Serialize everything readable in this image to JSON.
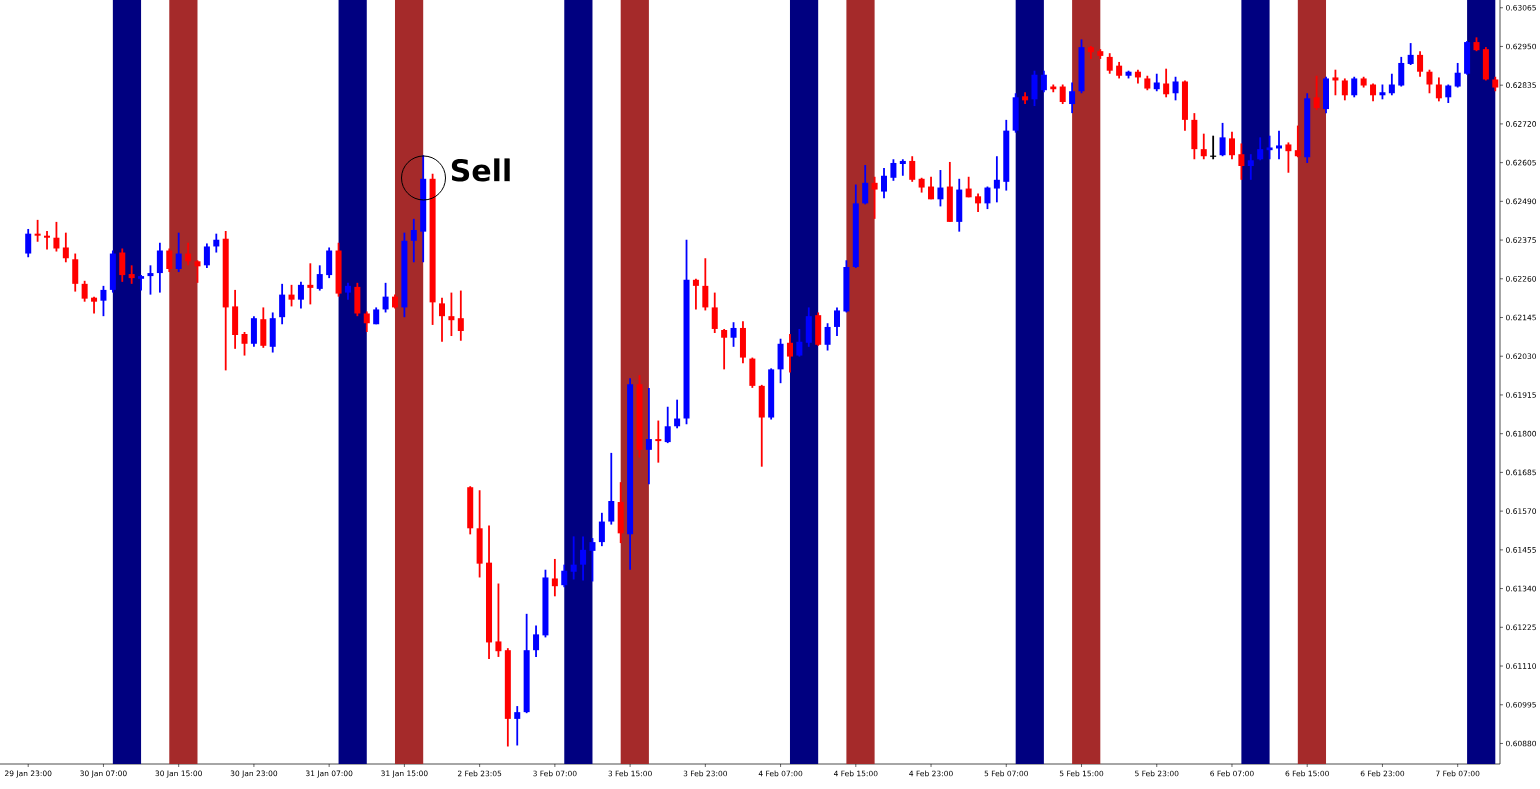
{
  "chart_data": {
    "type": "candlestick",
    "categories": [
      "29 Jan 23:00",
      null,
      null,
      null,
      null,
      null,
      null,
      null,
      "30 Jan 07:00",
      null,
      null,
      null,
      null,
      null,
      null,
      null,
      "30 Jan 15:00",
      null,
      null,
      null,
      null,
      null,
      null,
      null,
      "30 Jan 23:00",
      null,
      null,
      null,
      null,
      null,
      null,
      null,
      "31 Jan 07:00",
      null,
      null,
      null,
      null,
      null,
      null,
      null,
      "31 Jan 15:00",
      null,
      null,
      null,
      null,
      null,
      null,
      null,
      "2 Feb 23:05",
      null,
      null,
      null,
      null,
      null,
      null,
      null,
      "3 Feb 07:00",
      null,
      null,
      null,
      null,
      null,
      null,
      null,
      "3 Feb 15:00",
      null,
      null,
      null,
      null,
      null,
      null,
      null,
      "3 Feb 23:00",
      null,
      null,
      null,
      null,
      null,
      null,
      null,
      "4 Feb 07:00",
      null,
      null,
      null,
      null,
      null,
      null,
      null,
      "4 Feb 15:00",
      null,
      null,
      null,
      null,
      null,
      null,
      null,
      "4 Feb 23:00",
      null,
      null,
      null,
      null,
      null,
      null,
      null,
      "5 Feb 07:00",
      null,
      null,
      null,
      null,
      null,
      null,
      null,
      "5 Feb 15:00",
      null,
      null,
      null,
      null,
      null,
      null,
      null,
      "5 Feb 23:00",
      null,
      null,
      null,
      null,
      null,
      null,
      null,
      "6 Feb 07:00",
      null,
      null,
      null,
      null,
      null,
      null,
      null,
      "6 Feb 15:00",
      null,
      null,
      null,
      null,
      null,
      null,
      null,
      "6 Feb 23:00",
      null,
      null,
      null,
      null,
      null,
      null,
      null,
      "7 Feb 07:00",
      null,
      null,
      null,
      null
    ],
    "ohlc": [
      [
        0.62335,
        0.62408,
        0.62324,
        0.62394
      ],
      [
        0.62394,
        0.62435,
        0.6237,
        0.62388
      ],
      [
        0.62388,
        0.62402,
        0.62347,
        0.62382
      ],
      [
        0.62382,
        0.62429,
        0.62341,
        0.6235
      ],
      [
        0.62353,
        0.62397,
        0.62309,
        0.62321
      ],
      [
        0.62318,
        0.62335,
        0.62222,
        0.62245
      ],
      [
        0.62245,
        0.62254,
        0.62192,
        0.62201
      ],
      [
        0.62204,
        0.62207,
        0.62157,
        0.62192
      ],
      [
        0.62195,
        0.62239,
        0.62149,
        0.62227
      ],
      [
        0.62227,
        0.62344,
        0.62219,
        0.62335
      ],
      [
        0.62338,
        0.6235,
        0.62251,
        0.62271
      ],
      [
        0.62274,
        0.623,
        0.62245,
        0.62262
      ],
      [
        0.6226,
        0.62271,
        0.62225,
        0.62268
      ],
      [
        0.62268,
        0.623,
        0.62213,
        0.62277
      ],
      [
        0.62277,
        0.62367,
        0.62219,
        0.62344
      ],
      [
        0.62344,
        0.6235,
        0.6228,
        0.62289
      ],
      [
        0.62289,
        0.62397,
        0.6228,
        0.62335
      ],
      [
        0.62335,
        0.62367,
        0.623,
        0.62312
      ],
      [
        0.62312,
        0.62315,
        0.62248,
        0.62297
      ],
      [
        0.623,
        0.62365,
        0.62292,
        0.62356
      ],
      [
        0.62356,
        0.62394,
        0.62338,
        0.62376
      ],
      [
        0.62379,
        0.62402,
        0.61988,
        0.62175
      ],
      [
        0.62178,
        0.62227,
        0.62052,
        0.62093
      ],
      [
        0.62096,
        0.62102,
        0.62032,
        0.62067
      ],
      [
        0.62067,
        0.62149,
        0.62058,
        0.62143
      ],
      [
        0.6214,
        0.62175,
        0.62055,
        0.62061
      ],
      [
        0.62058,
        0.6216,
        0.62041,
        0.62143
      ],
      [
        0.62146,
        0.62245,
        0.62125,
        0.62213
      ],
      [
        0.62213,
        0.62242,
        0.62178,
        0.62198
      ],
      [
        0.62198,
        0.62251,
        0.62172,
        0.62242
      ],
      [
        0.62242,
        0.62306,
        0.62184,
        0.62233
      ],
      [
        0.6223,
        0.623,
        0.62225,
        0.62274
      ],
      [
        0.62271,
        0.62353,
        0.62262,
        0.62344
      ],
      [
        0.62344,
        0.62367,
        0.62207,
        0.62216
      ],
      [
        0.62219,
        0.62248,
        0.62198,
        0.62239
      ],
      [
        0.62236,
        0.62248,
        0.62149,
        0.62157
      ],
      [
        0.62157,
        0.62163,
        0.62102,
        0.62128
      ],
      [
        0.62125,
        0.62175,
        0.62125,
        0.62169
      ],
      [
        0.62169,
        0.62248,
        0.6216,
        0.62207
      ],
      [
        0.62207,
        0.62213,
        0.62172,
        0.62175
      ],
      [
        0.62175,
        0.62397,
        0.62146,
        0.62373
      ],
      [
        0.62373,
        0.62438,
        0.62309,
        0.62405
      ],
      [
        0.624,
        0.62627,
        0.62309,
        0.62557
      ],
      [
        0.62557,
        0.62572,
        0.62123,
        0.6219
      ],
      [
        0.62187,
        0.62204,
        0.62073,
        0.62149
      ],
      [
        0.62149,
        0.62219,
        0.6209,
        0.62137
      ],
      [
        0.62143,
        0.62225,
        0.62076,
        0.62105
      ],
      [
        0.61641,
        0.61644,
        0.61501,
        0.61519
      ],
      [
        0.61519,
        0.61632,
        0.61373,
        0.61414
      ],
      [
        0.61417,
        0.61527,
        0.61131,
        0.6118
      ],
      [
        0.61183,
        0.61355,
        0.61137,
        0.61154
      ],
      [
        0.61157,
        0.61163,
        0.60871,
        0.60953
      ],
      [
        0.60953,
        0.60991,
        0.60874,
        0.60973
      ],
      [
        0.60973,
        0.61265,
        0.6097,
        0.61157
      ],
      [
        0.61157,
        0.6123,
        0.61137,
        0.61204
      ],
      [
        0.61201,
        0.61396,
        0.61195,
        0.61373
      ],
      [
        0.6137,
        0.61428,
        0.61317,
        0.61347
      ],
      [
        0.6135,
        0.61411,
        0.61344,
        0.61393
      ],
      [
        0.6139,
        0.61495,
        0.61367,
        0.61411
      ],
      [
        0.61411,
        0.61495,
        0.61364,
        0.61455
      ],
      [
        0.61452,
        0.6149,
        0.61361,
        0.61478
      ],
      [
        0.61478,
        0.61565,
        0.61466,
        0.61539
      ],
      [
        0.61539,
        0.61743,
        0.6153,
        0.616
      ],
      [
        0.61597,
        0.61656,
        0.61475,
        0.61504
      ],
      [
        0.61501,
        0.61965,
        0.61396,
        0.61947
      ],
      [
        0.61947,
        0.61974,
        0.61729,
        0.61752
      ],
      [
        0.61752,
        0.61936,
        0.6165,
        0.61784
      ],
      [
        0.61784,
        0.61839,
        0.61714,
        0.61778
      ],
      [
        0.61775,
        0.6188,
        0.61772,
        0.61822
      ],
      [
        0.61822,
        0.61901,
        0.61816,
        0.61845
      ],
      [
        0.61845,
        0.62376,
        0.61828,
        0.62257
      ],
      [
        0.62257,
        0.6226,
        0.62169,
        0.62239
      ],
      [
        0.62239,
        0.62321,
        0.62166,
        0.62175
      ],
      [
        0.62175,
        0.62219,
        0.62099,
        0.62111
      ],
      [
        0.62108,
        0.62111,
        0.61991,
        0.62085
      ],
      [
        0.62085,
        0.62131,
        0.62058,
        0.62114
      ],
      [
        0.62114,
        0.62134,
        0.62009,
        0.62026
      ],
      [
        0.62023,
        0.62026,
        0.61936,
        0.61942
      ],
      [
        0.61942,
        0.61945,
        0.61702,
        0.61848
      ],
      [
        0.61848,
        0.61994,
        0.61842,
        0.61991
      ],
      [
        0.61991,
        0.62082,
        0.6195,
        0.62067
      ],
      [
        0.6207,
        0.62096,
        0.61982,
        0.62029
      ],
      [
        0.62032,
        0.62111,
        0.62029,
        0.62073
      ],
      [
        0.6207,
        0.62175,
        0.62058,
        0.62149
      ],
      [
        0.62152,
        0.6216,
        0.62061,
        0.62064
      ],
      [
        0.62064,
        0.62128,
        0.62047,
        0.62117
      ],
      [
        0.62117,
        0.62175,
        0.6209,
        0.62166
      ],
      [
        0.62163,
        0.62315,
        0.6216,
        0.62295
      ],
      [
        0.62295,
        0.6254,
        0.62292,
        0.62484
      ],
      [
        0.62484,
        0.62598,
        0.62481,
        0.62545
      ],
      [
        0.62545,
        0.62563,
        0.62438,
        0.62525
      ],
      [
        0.62519,
        0.62589,
        0.62499,
        0.62566
      ],
      [
        0.6256,
        0.62615,
        0.62551,
        0.62604
      ],
      [
        0.62601,
        0.62615,
        0.62566,
        0.6261
      ],
      [
        0.6261,
        0.62624,
        0.62548,
        0.62554
      ],
      [
        0.62557,
        0.6256,
        0.62516,
        0.62531
      ],
      [
        0.62534,
        0.62563,
        0.62496,
        0.62496
      ],
      [
        0.62496,
        0.62583,
        0.62475,
        0.62531
      ],
      [
        0.62534,
        0.62607,
        0.62429,
        0.62429
      ],
      [
        0.62429,
        0.62557,
        0.624,
        0.62525
      ],
      [
        0.62528,
        0.62563,
        0.62502,
        0.62502
      ],
      [
        0.62505,
        0.62513,
        0.62458,
        0.62484
      ],
      [
        0.62484,
        0.62534,
        0.62467,
        0.62531
      ],
      [
        0.62528,
        0.62624,
        0.62487,
        0.62554
      ],
      [
        0.62548,
        0.62732,
        0.62522,
        0.627
      ],
      [
        0.627,
        0.62811,
        0.62694,
        0.62799
      ],
      [
        0.62802,
        0.62814,
        0.62779,
        0.6279
      ],
      [
        0.62793,
        0.62878,
        0.62773,
        0.62866
      ],
      [
        0.6282,
        0.62878,
        0.62814,
        0.62866
      ],
      [
        0.62831,
        0.62837,
        0.62814,
        0.62823
      ],
      [
        0.62831,
        0.62837,
        0.62779,
        0.62785
      ],
      [
        0.62779,
        0.62843,
        0.62752,
        0.62817
      ],
      [
        0.62817,
        0.62971,
        0.62811,
        0.62948
      ],
      [
        0.62948,
        0.62951,
        0.62913,
        0.62933
      ],
      [
        0.62936,
        0.62942,
        0.62913,
        0.62922
      ],
      [
        0.62919,
        0.6293,
        0.62869,
        0.62878
      ],
      [
        0.62893,
        0.62904,
        0.62855,
        0.62863
      ],
      [
        0.62863,
        0.62878,
        0.62855,
        0.62875
      ],
      [
        0.62875,
        0.62881,
        0.6284,
        0.62858
      ],
      [
        0.62855,
        0.62863,
        0.6282,
        0.62825
      ],
      [
        0.62823,
        0.62869,
        0.62817,
        0.62843
      ],
      [
        0.6284,
        0.62884,
        0.62799,
        0.62808
      ],
      [
        0.62811,
        0.6286,
        0.6279,
        0.62846
      ],
      [
        0.62846,
        0.62849,
        0.627,
        0.62732
      ],
      [
        0.62732,
        0.62752,
        0.62615,
        0.62645
      ],
      [
        0.62645,
        0.62691,
        0.62615,
        0.62624
      ],
      [
        0.62624,
        0.62685,
        0.62615,
        0.62624
      ],
      [
        0.62627,
        0.62723,
        0.62624,
        0.6268
      ],
      [
        0.62677,
        0.62697,
        0.62615,
        0.62627
      ],
      [
        0.6263,
        0.62662,
        0.62554,
        0.62595
      ],
      [
        0.62595,
        0.6263,
        0.62554,
        0.62612
      ],
      [
        0.62615,
        0.6268,
        0.62612,
        0.62645
      ],
      [
        0.62642,
        0.62685,
        0.62615,
        0.6265
      ],
      [
        0.62647,
        0.627,
        0.62615,
        0.62656
      ],
      [
        0.62659,
        0.62665,
        0.62575,
        0.62639
      ],
      [
        0.62642,
        0.62715,
        0.62621,
        0.62624
      ],
      [
        0.62621,
        0.62811,
        0.62604,
        0.62796
      ],
      [
        0.62799,
        0.62863,
        0.62761,
        0.62767
      ],
      [
        0.62764,
        0.6286,
        0.62752,
        0.62855
      ],
      [
        0.62858,
        0.62881,
        0.62805,
        0.62849
      ],
      [
        0.62849,
        0.62855,
        0.6279,
        0.62805
      ],
      [
        0.62805,
        0.6286,
        0.62799,
        0.62855
      ],
      [
        0.62855,
        0.6286,
        0.62828,
        0.62834
      ],
      [
        0.62837,
        0.6284,
        0.62787,
        0.62805
      ],
      [
        0.62805,
        0.62837,
        0.62793,
        0.62814
      ],
      [
        0.62811,
        0.62869,
        0.62805,
        0.62837
      ],
      [
        0.62834,
        0.62919,
        0.62831,
        0.62901
      ],
      [
        0.62898,
        0.6296,
        0.62895,
        0.62925
      ],
      [
        0.62925,
        0.62936,
        0.6286,
        0.62875
      ],
      [
        0.62875,
        0.62881,
        0.62811,
        0.62837
      ],
      [
        0.62837,
        0.62858,
        0.62787,
        0.62796
      ],
      [
        0.62799,
        0.62837,
        0.62782,
        0.62834
      ],
      [
        0.62831,
        0.62901,
        0.62828,
        0.62872
      ],
      [
        0.62869,
        0.62966,
        0.62866,
        0.62963
      ],
      [
        0.62963,
        0.62977,
        0.62936,
        0.62939
      ],
      [
        0.62942,
        0.62948,
        0.62849,
        0.62852
      ],
      [
        0.62852,
        0.6286,
        0.62817,
        0.62828
      ]
    ],
    "colors": [
      "#0000ff",
      "#ff0000",
      "#ff0000",
      "#ff0000",
      "#ff0000",
      "#ff0000",
      "#ff0000",
      "#ff0000",
      "#0000ff",
      "#0000ff",
      "#ff0000",
      "#ff0000",
      "#0000ff",
      "#0000ff",
      "#0000ff",
      "#ff0000",
      "#0000ff",
      "#ff0000",
      "#ff0000",
      "#0000ff",
      "#0000ff",
      "#ff0000",
      "#ff0000",
      "#ff0000",
      "#0000ff",
      "#ff0000",
      "#0000ff",
      "#0000ff",
      "#ff0000",
      "#0000ff",
      "#ff0000",
      "#0000ff",
      "#0000ff",
      "#ff0000",
      "#0000ff",
      "#ff0000",
      "#ff0000",
      "#0000ff",
      "#0000ff",
      "#ff0000",
      "#0000ff",
      "#0000ff",
      "#0000ff",
      "#ff0000",
      "#ff0000",
      "#ff0000",
      "#ff0000",
      "#ff0000",
      "#ff0000",
      "#ff0000",
      "#ff0000",
      "#ff0000",
      "#0000ff",
      "#0000ff",
      "#0000ff",
      "#0000ff",
      "#ff0000",
      "#0000ff",
      "#0000ff",
      "#0000ff",
      "#0000ff",
      "#0000ff",
      "#0000ff",
      "#ff0000",
      "#0000ff",
      "#ff0000",
      "#0000ff",
      "#ff0000",
      "#0000ff",
      "#0000ff",
      "#0000ff",
      "#ff0000",
      "#ff0000",
      "#ff0000",
      "#ff0000",
      "#0000ff",
      "#ff0000",
      "#ff0000",
      "#ff0000",
      "#0000ff",
      "#0000ff",
      "#ff0000",
      "#0000ff",
      "#0000ff",
      "#ff0000",
      "#0000ff",
      "#0000ff",
      "#0000ff",
      "#0000ff",
      "#0000ff",
      "#ff0000",
      "#0000ff",
      "#0000ff",
      "#0000ff",
      "#ff0000",
      "#ff0000",
      "#ff0000",
      "#0000ff",
      "#ff0000",
      "#0000ff",
      "#ff0000",
      "#ff0000",
      "#0000ff",
      "#0000ff",
      "#0000ff",
      "#0000ff",
      "#ff0000",
      "#0000ff",
      "#0000ff",
      "#ff0000",
      "#ff0000",
      "#0000ff",
      "#0000ff",
      "#ff0000",
      "#ff0000",
      "#ff0000",
      "#ff0000",
      "#0000ff",
      "#ff0000",
      "#ff0000",
      "#0000ff",
      "#ff0000",
      "#0000ff",
      "#ff0000",
      "#ff0000",
      "#ff0000",
      "#000000",
      "#0000ff",
      "#ff0000",
      "#ff0000",
      "#0000ff",
      "#0000ff",
      "#0000ff",
      "#0000ff",
      "#ff0000",
      "#ff0000",
      "#0000ff",
      "#ff0000",
      "#0000ff",
      "#ff0000",
      "#ff0000",
      "#0000ff",
      "#ff0000",
      "#ff0000",
      "#0000ff",
      "#0000ff",
      "#0000ff",
      "#0000ff",
      "#ff0000",
      "#ff0000",
      "#ff0000",
      "#0000ff",
      "#0000ff",
      "#0000ff",
      "#ff0000",
      "#ff0000",
      "#ff0000"
    ],
    "ylim": [
      0.60819,
      0.63088
    ],
    "yticks": [
      {
        "value": 0.63065,
        "label": "0.63065"
      },
      {
        "value": 0.6295,
        "label": "0.62950"
      },
      {
        "value": 0.62835,
        "label": "0.62835"
      },
      {
        "value": 0.6272,
        "label": "0.62720"
      },
      {
        "value": 0.62605,
        "label": "0.62605"
      },
      {
        "value": 0.6249,
        "label": "0.62490"
      },
      {
        "value": 0.62375,
        "label": "0.62375"
      },
      {
        "value": 0.6226,
        "label": "0.62260"
      },
      {
        "value": 0.62145,
        "label": "0.62145"
      },
      {
        "value": 0.6203,
        "label": "0.62030"
      },
      {
        "value": 0.61915,
        "label": "0.61915"
      },
      {
        "value": 0.618,
        "label": "0.61800"
      },
      {
        "value": 0.61685,
        "label": "0.61685"
      },
      {
        "value": 0.6157,
        "label": "0.61570"
      },
      {
        "value": 0.61455,
        "label": "0.61455"
      },
      {
        "value": 0.6134,
        "label": "0.61340"
      },
      {
        "value": 0.61225,
        "label": "0.61225"
      },
      {
        "value": 0.6111,
        "label": "0.61110"
      },
      {
        "value": 0.60995,
        "label": "0.60995"
      },
      {
        "value": 0.6088,
        "label": "0.60880"
      }
    ],
    "annotations": [
      "Sell"
    ]
  }
}
